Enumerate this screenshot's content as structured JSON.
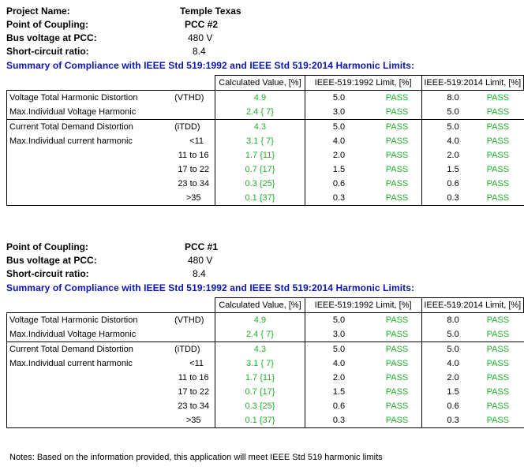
{
  "project": {
    "name_label": "Project Name:",
    "name_value": "Temple Texas"
  },
  "labels": {
    "pcc": "Point of Coupling:",
    "bus": "Bus voltage at PCC:",
    "scr": "Short-circuit ratio:",
    "summary": "Summary of Compliance with IEEE  Std 519:1992 and IEEE  Std 519:2014 Harmonic Limits:",
    "calc_header": "Calculated Value, [%]",
    "limit_1992_header": "IEEE-519:1992 Limit, [%]",
    "limit_2014_header": "IEEE-519:2014 Limit, [%]",
    "vthd_desc": "Voltage Total Harmonic Distortion",
    "vthd_sym": "(VTHD)",
    "maxv_desc": "Max.Individual Voltage Harmonic",
    "itdd_desc": "Current Total Demand Distortion",
    "itdd_sym": "(iTDD)",
    "maxi_desc": "Max.Individual current harmonic"
  },
  "sections": [
    {
      "pcc": "PCC #2",
      "bus_voltage": "480 V",
      "scr": "8.4",
      "vthd": {
        "calc": "4.9",
        "lim1992": "5.0",
        "res1992": "PASS",
        "lim2014": "8.0",
        "res2014": "PASS"
      },
      "maxv": {
        "calc": "2.4 { 7}",
        "lim1992": "3.0",
        "res1992": "PASS",
        "lim2014": "5.0",
        "res2014": "PASS"
      },
      "itdd": {
        "calc": "4.3",
        "lim1992": "5.0",
        "res1992": "PASS",
        "lim2014": "5.0",
        "res2014": "PASS"
      },
      "maxi": [
        {
          "range": "<11",
          "calc": "3.1 { 7}",
          "lim1992": "4.0",
          "res1992": "PASS",
          "lim2014": "4.0",
          "res2014": "PASS"
        },
        {
          "range": "11 to 16",
          "calc": "1.7 {11}",
          "lim1992": "2.0",
          "res1992": "PASS",
          "lim2014": "2.0",
          "res2014": "PASS"
        },
        {
          "range": "17 to 22",
          "calc": "0.7 {17}",
          "lim1992": "1.5",
          "res1992": "PASS",
          "lim2014": "1.5",
          "res2014": "PASS"
        },
        {
          "range": "23 to 34",
          "calc": "0.3 {25}",
          "lim1992": "0.6",
          "res1992": "PASS",
          "lim2014": "0.6",
          "res2014": "PASS"
        },
        {
          "range": ">35",
          "calc": "0.1 {37}",
          "lim1992": "0.3",
          "res1992": "PASS",
          "lim2014": "0.3",
          "res2014": "PASS"
        }
      ]
    },
    {
      "pcc": "PCC #1",
      "bus_voltage": "480 V",
      "scr": "8.4",
      "vthd": {
        "calc": "4.9",
        "lim1992": "5.0",
        "res1992": "PASS",
        "lim2014": "8.0",
        "res2014": "PASS"
      },
      "maxv": {
        "calc": "2.4 { 7}",
        "lim1992": "3.0",
        "res1992": "PASS",
        "lim2014": "5.0",
        "res2014": "PASS"
      },
      "itdd": {
        "calc": "4.3",
        "lim1992": "5.0",
        "res1992": "PASS",
        "lim2014": "5.0",
        "res2014": "PASS"
      },
      "maxi": [
        {
          "range": "<11",
          "calc": "3.1 { 7}",
          "lim1992": "4.0",
          "res1992": "PASS",
          "lim2014": "4.0",
          "res2014": "PASS"
        },
        {
          "range": "11 to 16",
          "calc": "1.7 {11}",
          "lim1992": "2.0",
          "res1992": "PASS",
          "lim2014": "2.0",
          "res2014": "PASS"
        },
        {
          "range": "17 to 22",
          "calc": "0.7 {17}",
          "lim1992": "1.5",
          "res1992": "PASS",
          "lim2014": "1.5",
          "res2014": "PASS"
        },
        {
          "range": "23 to 34",
          "calc": "0.3 {25}",
          "lim1992": "0.6",
          "res1992": "PASS",
          "lim2014": "0.6",
          "res2014": "PASS"
        },
        {
          "range": ">35",
          "calc": "0.1 {37}",
          "lim1992": "0.3",
          "res1992": "PASS",
          "lim2014": "0.3",
          "res2014": "PASS"
        }
      ]
    }
  ],
  "notes": "Notes:  Based on the information provided, this application will meet IEEE Std 519 harmonic limits"
}
